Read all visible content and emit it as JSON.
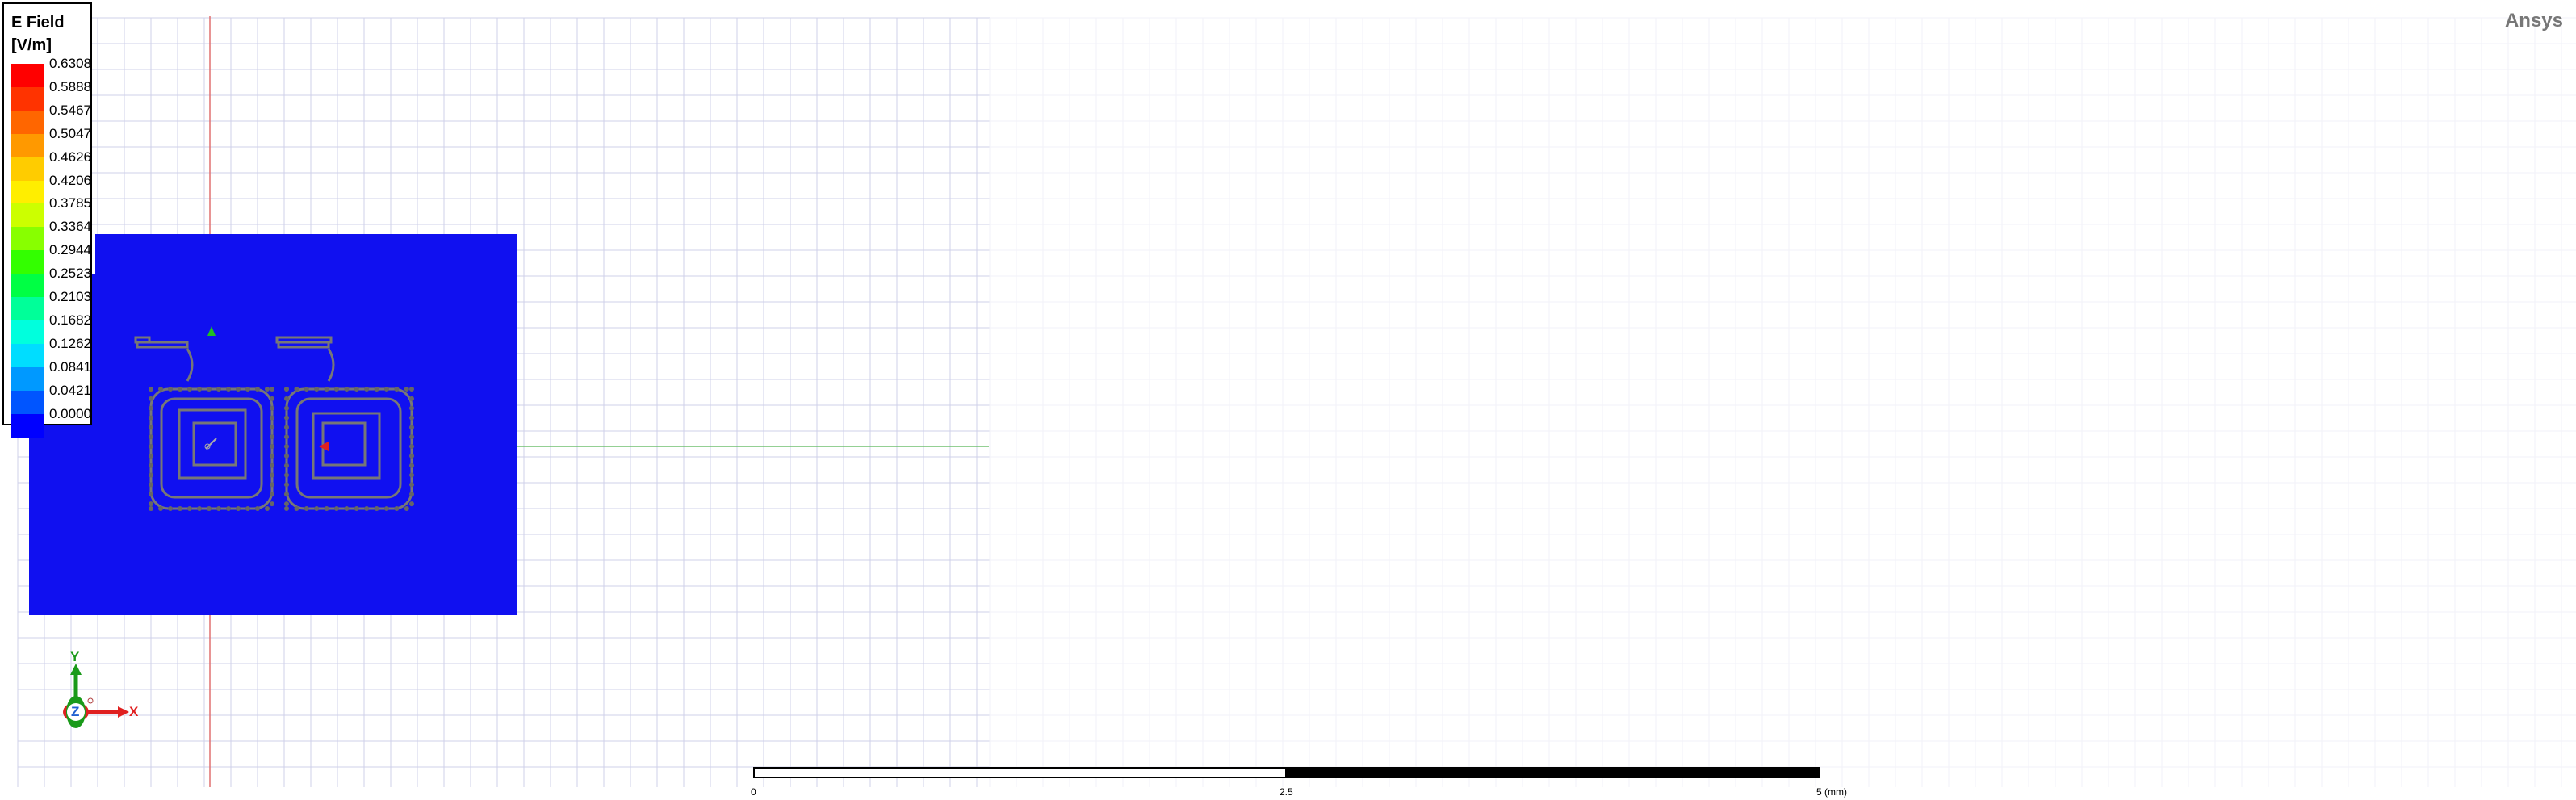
{
  "app": {
    "brand": "Ansys"
  },
  "legend": {
    "title": "E Field",
    "unit": "[V/m]",
    "entries": [
      {
        "value": "0.6308",
        "color": "#ff0000"
      },
      {
        "value": "0.5888",
        "color": "#ff3300"
      },
      {
        "value": "0.5467",
        "color": "#ff6600"
      },
      {
        "value": "0.5047",
        "color": "#ff9900"
      },
      {
        "value": "0.4626",
        "color": "#ffcc00"
      },
      {
        "value": "0.4206",
        "color": "#ffee00"
      },
      {
        "value": "0.3785",
        "color": "#ccff00"
      },
      {
        "value": "0.3364",
        "color": "#88ff00"
      },
      {
        "value": "0.2944",
        "color": "#33ff00"
      },
      {
        "value": "0.2523",
        "color": "#00ff44"
      },
      {
        "value": "0.2103",
        "color": "#00ff99"
      },
      {
        "value": "0.1682",
        "color": "#00ffdd"
      },
      {
        "value": "0.1262",
        "color": "#00ddff"
      },
      {
        "value": "0.0841",
        "color": "#0099ff"
      },
      {
        "value": "0.0421",
        "color": "#0055ff"
      },
      {
        "value": "0.0000",
        "color": "#0000ff"
      }
    ]
  },
  "triad": {
    "x_label": "X",
    "y_label": "Y",
    "z_label": "Z"
  },
  "scale_bar": {
    "ticks": [
      "0",
      "2.5",
      "5 (mm)"
    ]
  },
  "colors": {
    "field_fill": "#1010f0",
    "grid": "#c8c8e6",
    "red_axis": "#e06060",
    "green_axis": "#60c060"
  }
}
